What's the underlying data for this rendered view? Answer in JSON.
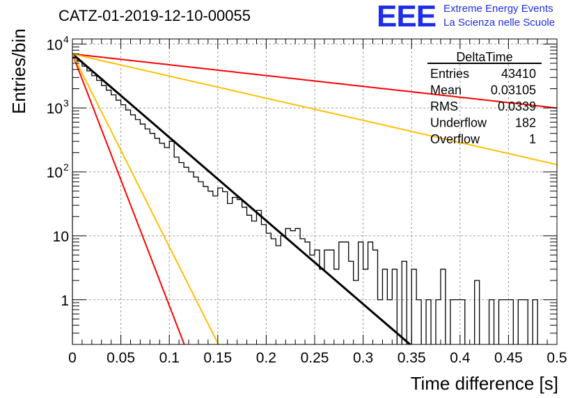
{
  "title": "CATZ-01-2019-12-10-00055",
  "logo": {
    "mark": "EEE",
    "line1": "Extreme Energy Events",
    "line2": "La Scienza nelle Scuole"
  },
  "chart_data": {
    "type": "histogram",
    "xlabel": "Time difference [s]",
    "ylabel": "Entries/bin",
    "xlim": [
      0,
      0.5
    ],
    "ylim": [
      0.2,
      12000
    ],
    "yscale": "log",
    "grid": true,
    "x_ticks": [
      {
        "v": 0,
        "label": "0"
      },
      {
        "v": 0.05,
        "label": "0.05"
      },
      {
        "v": 0.1,
        "label": "0.1"
      },
      {
        "v": 0.15,
        "label": "0.15"
      },
      {
        "v": 0.2,
        "label": "0.2"
      },
      {
        "v": 0.25,
        "label": "0.25"
      },
      {
        "v": 0.3,
        "label": "0.3"
      },
      {
        "v": 0.35,
        "label": "0.35"
      },
      {
        "v": 0.4,
        "label": "0.4"
      },
      {
        "v": 0.45,
        "label": "0.45"
      },
      {
        "v": 0.5,
        "label": "0.5"
      }
    ],
    "y_ticks": [
      {
        "v": 1,
        "base": "1",
        "exp": ""
      },
      {
        "v": 10,
        "base": "10",
        "exp": ""
      },
      {
        "v": 100,
        "base": "10",
        "exp": "2"
      },
      {
        "v": 1000,
        "base": "10",
        "exp": "3"
      },
      {
        "v": 10000,
        "base": "10",
        "exp": "4"
      }
    ],
    "histogram": {
      "bin_width": 0.005,
      "values": [
        6200,
        5400,
        4500,
        3800,
        3200,
        2700,
        2250,
        1900,
        1600,
        1320,
        1120,
        930,
        780,
        660,
        560,
        470,
        400,
        335,
        280,
        240,
        300,
        170,
        140,
        118,
        100,
        83,
        70,
        59,
        50,
        42,
        56,
        49,
        32,
        40,
        37,
        28,
        21,
        17,
        25,
        15,
        11,
        9,
        7,
        10,
        13,
        12,
        13,
        9,
        8,
        5,
        6,
        3,
        6,
        6,
        3,
        8,
        8,
        4,
        2,
        8,
        3,
        8,
        6,
        1,
        3,
        1,
        3,
        0,
        4,
        0,
        3,
        1,
        0,
        1,
        0,
        1,
        3,
        0,
        1,
        1,
        1,
        0,
        0,
        2,
        0,
        0,
        1,
        0,
        1,
        1,
        1,
        0,
        1,
        1,
        0,
        1,
        0,
        0,
        0,
        0
      ]
    },
    "fits": [
      {
        "color": "#000000",
        "y0": 7000,
        "tau": 0.0333,
        "width": 3
      },
      {
        "color": "#ff0000",
        "y0": 7000,
        "tau": 0.01103,
        "width": 2
      },
      {
        "color": "#ffc000",
        "y0": 7000,
        "tau": 0.0144,
        "width": 2
      },
      {
        "color": "#ff0000",
        "y0": 7000,
        "tau": 0.2566,
        "width": 2
      },
      {
        "color": "#ffc000",
        "y0": 7000,
        "tau": 0.1254,
        "width": 2
      }
    ],
    "stats": {
      "name": "DeltaTime",
      "rows": [
        {
          "label": "Entries",
          "value": "43410"
        },
        {
          "label": "Mean",
          "value": "0.03105"
        },
        {
          "label": "RMS",
          "value": "0.0339"
        },
        {
          "label": "Underflow",
          "value": "182"
        },
        {
          "label": "Overflow",
          "value": "1"
        }
      ]
    }
  }
}
